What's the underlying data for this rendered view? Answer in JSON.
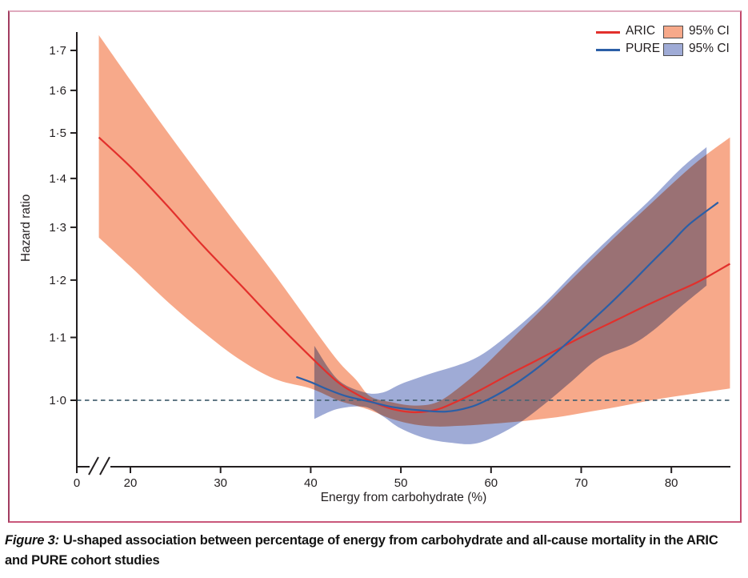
{
  "figure": {
    "caption_prefix": "Figure 3:",
    "caption_text": "U-shaped association between percentage of energy from carbohydrate and all-cause mortality in the ARIC and PURE cohort studies"
  },
  "legend": {
    "items": [
      {
        "label": "ARIC",
        "ci_label": "95% CI",
        "line_color": "#e2302c",
        "band_color": "#f7a98a"
      },
      {
        "label": "PURE",
        "ci_label": "95% CI",
        "line_color": "#2b5fa7",
        "band_color": "#9fabd6"
      }
    ]
  },
  "colors": {
    "axis": "#231f20",
    "reference_line": "#4a6474",
    "border_pink": "#c2486b",
    "aric_line": "#e2302c",
    "aric_band": "#f7a98a",
    "pure_line": "#2b5fa7",
    "pure_band": "#9fabd6"
  },
  "chart_data": {
    "type": "line",
    "title": "",
    "xlabel": "Energy from carbohydrate (%)",
    "ylabel": "Hazard ratio",
    "y_scale": "log",
    "grid": false,
    "legend_position": "top-right",
    "x_ticks": [
      0,
      20,
      30,
      40,
      50,
      60,
      70,
      80
    ],
    "x_axis_break_between": [
      0,
      20
    ],
    "y_ticks": [
      "1·0",
      "1·1",
      "1·2",
      "1·3",
      "1·4",
      "1·5",
      "1·6",
      "1·7"
    ],
    "ylim": [
      0.9,
      1.75
    ],
    "xlim": [
      16.5,
      86.5
    ],
    "reference_line_y": 1.0,
    "series": [
      {
        "name": "ARIC",
        "color": "#e2302c",
        "band_color": "#f7a98a",
        "points": [
          [
            16.5,
            1.49
          ],
          [
            20,
            1.425
          ],
          [
            24,
            1.345
          ],
          [
            28,
            1.265
          ],
          [
            32,
            1.195
          ],
          [
            36,
            1.128
          ],
          [
            40,
            1.068
          ],
          [
            43,
            1.028
          ],
          [
            45,
            1.01
          ],
          [
            46.6,
            0.999
          ],
          [
            49,
            0.987
          ],
          [
            51.5,
            0.982
          ],
          [
            54,
            0.986
          ],
          [
            56.5,
            1.0
          ],
          [
            59,
            1.017
          ],
          [
            62,
            1.04
          ],
          [
            65,
            1.062
          ],
          [
            68,
            1.085
          ],
          [
            71,
            1.108
          ],
          [
            74,
            1.13
          ],
          [
            77,
            1.153
          ],
          [
            80,
            1.175
          ],
          [
            83,
            1.197
          ],
          [
            86.5,
            1.23
          ]
        ],
        "ci_band": [
          [
            16.5,
            1.28,
            1.74
          ],
          [
            20,
            1.225,
            1.625
          ],
          [
            24,
            1.163,
            1.505
          ],
          [
            28,
            1.11,
            1.398
          ],
          [
            32,
            1.065,
            1.3
          ],
          [
            36,
            1.033,
            1.21
          ],
          [
            40,
            1.018,
            1.122
          ],
          [
            43,
            1.0,
            1.062
          ],
          [
            45,
            0.992,
            1.032
          ],
          [
            46.6,
            0.985,
            1.006
          ],
          [
            49,
            0.972,
            0.997
          ],
          [
            51.5,
            0.964,
            0.992
          ],
          [
            54,
            0.961,
            0.997
          ],
          [
            56.5,
            0.962,
            1.02
          ],
          [
            59,
            0.964,
            1.05
          ],
          [
            62,
            0.967,
            1.093
          ],
          [
            65,
            0.971,
            1.138
          ],
          [
            68,
            0.976,
            1.186
          ],
          [
            71,
            0.983,
            1.235
          ],
          [
            74,
            0.99,
            1.285
          ],
          [
            77,
            0.998,
            1.335
          ],
          [
            80,
            1.005,
            1.387
          ],
          [
            83,
            1.011,
            1.438
          ],
          [
            86.5,
            1.018,
            1.49
          ]
        ]
      },
      {
        "name": "PURE",
        "color": "#2b5fa7",
        "band_color": "#9fabd6",
        "points": [
          [
            38.4,
            1.036
          ],
          [
            40,
            1.028
          ],
          [
            42,
            1.016
          ],
          [
            44,
            1.006
          ],
          [
            46.5,
            0.998
          ],
          [
            49,
            0.99
          ],
          [
            52,
            0.985
          ],
          [
            55,
            0.983
          ],
          [
            57.5,
            0.989
          ],
          [
            59.5,
            1.0
          ],
          [
            62,
            1.019
          ],
          [
            64,
            1.038
          ],
          [
            66,
            1.06
          ],
          [
            68,
            1.085
          ],
          [
            70,
            1.112
          ],
          [
            72,
            1.14
          ],
          [
            74,
            1.17
          ],
          [
            76,
            1.202
          ],
          [
            78,
            1.236
          ],
          [
            80,
            1.27
          ],
          [
            82,
            1.306
          ],
          [
            85.2,
            1.35
          ]
        ],
        "ci_band": [
          [
            40.4,
            0.972,
            1.086
          ],
          [
            43,
            0.987,
            1.032
          ],
          [
            46,
            0.99,
            1.012
          ],
          [
            48,
            0.976,
            1.012
          ],
          [
            50,
            0.958,
            1.025
          ],
          [
            53,
            0.943,
            1.04
          ],
          [
            56,
            0.937,
            1.053
          ],
          [
            58,
            0.936,
            1.064
          ],
          [
            60,
            0.944,
            1.082
          ],
          [
            63,
            0.965,
            1.118
          ],
          [
            66,
            0.995,
            1.16
          ],
          [
            69,
            1.03,
            1.21
          ],
          [
            72,
            1.066,
            1.26
          ],
          [
            75.6,
            1.088,
            1.32
          ],
          [
            78,
            1.112,
            1.362
          ],
          [
            81,
            1.152,
            1.42
          ],
          [
            83.9,
            1.19,
            1.468
          ]
        ]
      }
    ]
  }
}
